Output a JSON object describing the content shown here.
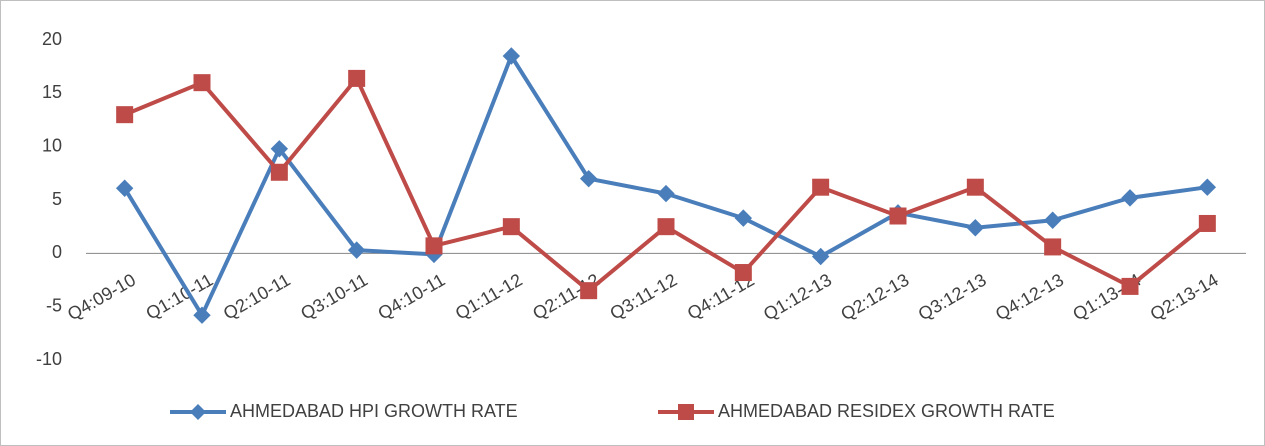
{
  "chart_data": {
    "type": "line",
    "categories": [
      "Q4:09-10",
      "Q1:10-11",
      "Q2:10-11",
      "Q3:10-11",
      "Q4:10-11",
      "Q1:11-12",
      "Q2:11-12",
      "Q3:11-12",
      "Q4:11-12",
      "Q1:12-13",
      "Q2:12-13",
      "Q3:12-13",
      "Q4:12-13",
      "Q1:13-14",
      "Q2:13-14"
    ],
    "series": [
      {
        "name": "AHMEDABAD HPI GROWTH RATE",
        "color": "#4a7ebb",
        "marker": "diamond",
        "values": [
          6.1,
          -5.8,
          9.8,
          0.3,
          -0.1,
          18.5,
          7.0,
          5.6,
          3.3,
          -0.3,
          3.8,
          2.4,
          3.1,
          5.2,
          6.2
        ]
      },
      {
        "name": "AHMEDABAD RESIDEX GROWTH RATE",
        "color": "#be4b48",
        "marker": "square",
        "values": [
          13.0,
          16.0,
          7.6,
          16.4,
          0.7,
          2.5,
          -3.5,
          2.5,
          -1.8,
          6.2,
          3.5,
          6.2,
          0.6,
          -3.1,
          2.8
        ]
      }
    ],
    "ylim": [
      -10,
      20
    ],
    "yticks": [
      -10,
      -5,
      0,
      5,
      10,
      15,
      20
    ],
    "grid": false,
    "legend": "bottom"
  }
}
